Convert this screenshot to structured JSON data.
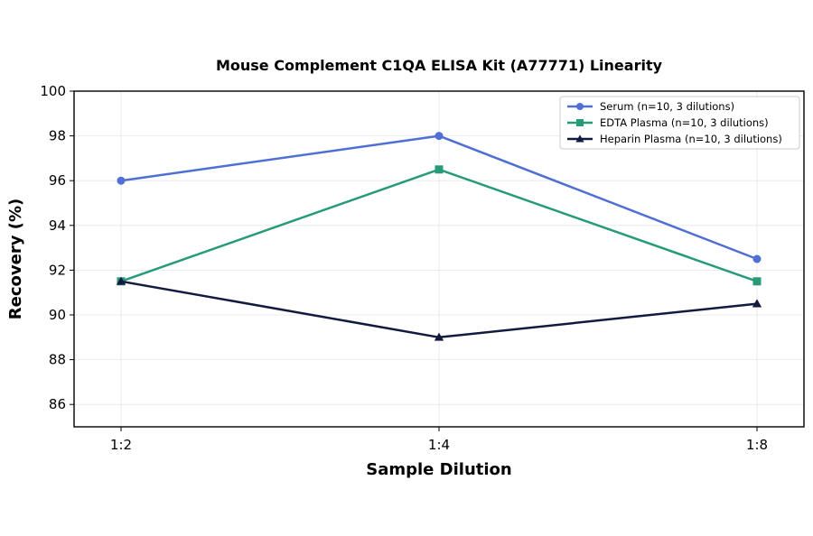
{
  "chart_data": {
    "type": "line",
    "title": "Mouse Complement C1QA ELISA Kit (A77771) Linearity",
    "xlabel": "Sample Dilution",
    "ylabel": "Recovery (%)",
    "categories": [
      "1:2",
      "1:4",
      "1:8"
    ],
    "ylim": [
      85,
      100
    ],
    "yticks": [
      86,
      88,
      90,
      92,
      94,
      96,
      98,
      100
    ],
    "grid": true,
    "legend_position": "top-right",
    "series": [
      {
        "name": "Serum (n=10, 3 dilutions)",
        "values": [
          96,
          98,
          92.5
        ],
        "color": "#4f6fd4",
        "marker": "circle"
      },
      {
        "name": "EDTA Plasma (n=10, 3 dilutions)",
        "values": [
          91.5,
          96.5,
          91.5
        ],
        "color": "#279b78",
        "marker": "square"
      },
      {
        "name": "Heparin Plasma (n=10, 3 dilutions)",
        "values": [
          91.5,
          89,
          90.5
        ],
        "color": "#121a3f",
        "marker": "triangle"
      }
    ]
  }
}
